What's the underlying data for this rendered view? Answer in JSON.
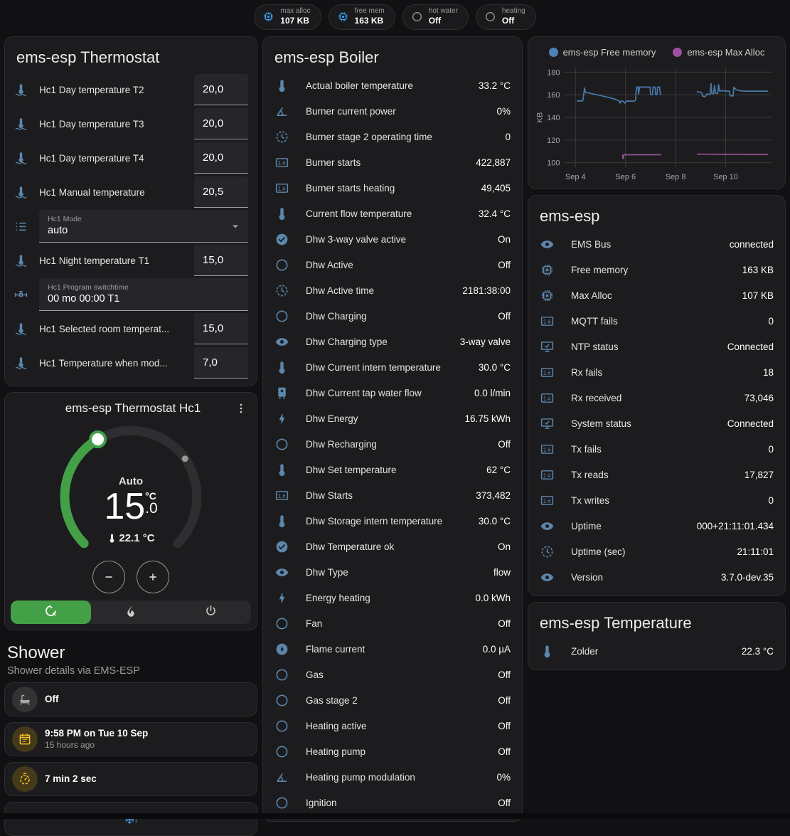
{
  "colors": {
    "accent_green": "#43a047",
    "entity_icon_blue": "#5d86ac",
    "chip_icon_blue": "#38a1ee",
    "tile_amber": "#ffc107",
    "chart_blue": "#4878a8",
    "chart_purple": "#96519a"
  },
  "header": {
    "chips": [
      {
        "icon": "chip",
        "icon_color": "blue",
        "label": "max alloc",
        "value": "107 KB"
      },
      {
        "icon": "chip",
        "icon_color": "blue",
        "label": "free mem",
        "value": "163 KB"
      },
      {
        "icon": "circle-outline",
        "icon_color": "grey",
        "label": "hot water",
        "value": "Off"
      },
      {
        "icon": "circle-outline",
        "icon_color": "grey",
        "label": "heating",
        "value": "Off"
      }
    ]
  },
  "thermostat_card": {
    "title": "ems-esp Thermostat",
    "rows": [
      {
        "icon": "thermometer-water",
        "label": "Hc1 Day temperature T2",
        "input": "20,0"
      },
      {
        "icon": "thermometer-water",
        "label": "Hc1 Day temperature T3",
        "input": "20,0"
      },
      {
        "icon": "thermometer-water",
        "label": "Hc1 Day temperature T4",
        "input": "20,0"
      },
      {
        "icon": "thermometer-water",
        "label": "Hc1 Manual temperature",
        "input": "20,5"
      },
      {
        "icon": "format-list",
        "label": "Hc1 Mode",
        "select": "auto"
      },
      {
        "icon": "thermometer-water",
        "label": "Hc1 Night temperature T1",
        "input": "15,0"
      },
      {
        "icon": "pipe-valve",
        "label": "Hc1 Program switchtime",
        "text": "00 mo 00:00 T1"
      },
      {
        "icon": "thermometer-water",
        "label": "Hc1 Selected room temperat...",
        "input": "15,0"
      },
      {
        "icon": "thermometer-water",
        "label": "Hc1 Temperature when mod...",
        "input": "7,0"
      }
    ]
  },
  "dial_card": {
    "title": "ems-esp Thermostat Hc1",
    "mode_label": "Auto",
    "target_temp": "15",
    "target_fraction": ".0",
    "unit": "°C",
    "current_temp": "22.1 °C",
    "modes": [
      {
        "icon": "thermostat-auto",
        "state": "active"
      },
      {
        "icon": "fire",
        "state": ""
      },
      {
        "icon": "power",
        "state": ""
      }
    ]
  },
  "shower": {
    "title": "Shower",
    "subtitle": "Shower details via EMS-ESP",
    "tiles": [
      {
        "icon": "bathtub",
        "icon_color": "grey",
        "primary": "Off"
      },
      {
        "icon": "calendar-clock",
        "icon_color": "amber",
        "primary": "9:58 PM on Tue 10 Sep",
        "secondary": "15 hours ago"
      },
      {
        "icon": "timer",
        "icon_color": "amber",
        "primary": "7 min 2 sec"
      },
      {
        "icon": "snowflake-alert",
        "icon_color": "blue",
        "variant": "centered"
      }
    ]
  },
  "boiler_card": {
    "title": "ems-esp Boiler",
    "rows": [
      {
        "icon": "thermometer",
        "label": "Actual boiler temperature",
        "value": "33.2 °C"
      },
      {
        "icon": "angle-acute",
        "label": "Burner current power",
        "value": "0%"
      },
      {
        "icon": "clock-outline",
        "label": "Burner stage 2 operating time",
        "value": "0"
      },
      {
        "icon": "counter",
        "label": "Burner starts",
        "value": "422,887"
      },
      {
        "icon": "counter",
        "label": "Burner starts heating",
        "value": "49,405"
      },
      {
        "icon": "thermometer",
        "label": "Current flow temperature",
        "value": "32.4 °C"
      },
      {
        "icon": "check-circle",
        "label": "Dhw 3-way valve active",
        "value": "On"
      },
      {
        "icon": "circle-outline",
        "label": "Dhw Active",
        "value": "Off"
      },
      {
        "icon": "clock-outline",
        "label": "Dhw Active time",
        "value": "2181:38:00"
      },
      {
        "icon": "circle-outline",
        "label": "Dhw Charging",
        "value": "Off"
      },
      {
        "icon": "eye",
        "label": "Dhw Charging type",
        "value": "3-way valve"
      },
      {
        "icon": "thermometer",
        "label": "Dhw Current intern temperature",
        "value": "30.0 °C"
      },
      {
        "icon": "water-boiler",
        "label": "Dhw Current tap water flow",
        "value": "0.0 l/min"
      },
      {
        "icon": "lightning-bolt",
        "label": "Dhw Energy",
        "value": "16.75 kWh"
      },
      {
        "icon": "circle-outline",
        "label": "Dhw Recharging",
        "value": "Off"
      },
      {
        "icon": "thermometer",
        "label": "Dhw Set temperature",
        "value": "62 °C"
      },
      {
        "icon": "counter",
        "label": "Dhw Starts",
        "value": "373,482"
      },
      {
        "icon": "thermometer",
        "label": "Dhw Storage intern temperature",
        "value": "30.0 °C"
      },
      {
        "icon": "check-circle",
        "label": "Dhw Temperature ok",
        "value": "On"
      },
      {
        "icon": "eye",
        "label": "Dhw Type",
        "value": "flow"
      },
      {
        "icon": "lightning-bolt",
        "label": "Energy heating",
        "value": "0.0 kWh"
      },
      {
        "icon": "circle-outline",
        "label": "Fan",
        "value": "Off"
      },
      {
        "icon": "flash-circle",
        "label": "Flame current",
        "value": "0.0 µA"
      },
      {
        "icon": "circle-outline",
        "label": "Gas",
        "value": "Off"
      },
      {
        "icon": "circle-outline",
        "label": "Gas stage 2",
        "value": "Off"
      },
      {
        "icon": "circle-outline",
        "label": "Heating active",
        "value": "Off"
      },
      {
        "icon": "circle-outline",
        "label": "Heating pump",
        "value": "Off"
      },
      {
        "icon": "angle-acute",
        "label": "Heating pump modulation",
        "value": "0%"
      },
      {
        "icon": "circle-outline",
        "label": "Ignition",
        "value": "Off"
      }
    ]
  },
  "system_card": {
    "title": "ems-esp",
    "rows": [
      {
        "icon": "eye",
        "label": "EMS Bus",
        "value": "connected"
      },
      {
        "icon": "chip",
        "label": "Free memory",
        "value": "163 KB"
      },
      {
        "icon": "chip",
        "label": "Max Alloc",
        "value": "107 KB"
      },
      {
        "icon": "counter",
        "label": "MQTT fails",
        "value": "0"
      },
      {
        "icon": "monitor-check",
        "label": "NTP status",
        "value": "Connected"
      },
      {
        "icon": "counter",
        "label": "Rx fails",
        "value": "18"
      },
      {
        "icon": "counter",
        "label": "Rx received",
        "value": "73,046"
      },
      {
        "icon": "monitor-check",
        "label": "System status",
        "value": "Connected"
      },
      {
        "icon": "counter",
        "label": "Tx fails",
        "value": "0"
      },
      {
        "icon": "counter",
        "label": "Tx reads",
        "value": "17,827"
      },
      {
        "icon": "counter",
        "label": "Tx writes",
        "value": "0"
      },
      {
        "icon": "eye",
        "label": "Uptime",
        "value": "000+21:11:01.434"
      },
      {
        "icon": "clock-outline",
        "label": "Uptime (sec)",
        "value": "21:11:01"
      },
      {
        "icon": "eye",
        "label": "Version",
        "value": "3.7.0-dev.35"
      }
    ]
  },
  "temperature_card": {
    "title": "ems-esp Temperature",
    "rows": [
      {
        "icon": "thermometer",
        "label": "Zolder",
        "value": "22.3 °C"
      }
    ]
  },
  "chart_data": {
    "type": "line",
    "title": "",
    "xlabel": "",
    "ylabel": "KB",
    "xlim": [
      3.55,
      11.85
    ],
    "ylim": [
      96,
      184
    ],
    "y_ticks": [
      100,
      120,
      140,
      160,
      180
    ],
    "x_ticks": [
      {
        "x": 4,
        "label": "Sep 4"
      },
      {
        "x": 6,
        "label": "Sep 6"
      },
      {
        "x": 8,
        "label": "Sep 8"
      },
      {
        "x": 10,
        "label": "Sep 10"
      }
    ],
    "grid": true,
    "legend_position": "top",
    "legend": [
      {
        "label": "ems-esp Free memory",
        "color": "#4e81b5"
      },
      {
        "label": "ems-esp Max Alloc",
        "color": "#9b51a0"
      }
    ],
    "series": [
      {
        "name": "ems-esp Free memory",
        "color": "#4878a8",
        "unit": "KB",
        "segments": [
          [
            [
              4.05,
              154.5
            ],
            [
              4.28,
              154.5
            ],
            [
              4.3,
              155.5
            ],
            [
              4.36,
              166
            ],
            [
              4.4,
              162
            ],
            [
              4.55,
              161.5
            ],
            [
              4.8,
              160.3
            ],
            [
              5.1,
              158.8
            ],
            [
              5.4,
              157.2
            ],
            [
              5.65,
              155.5
            ],
            [
              5.75,
              154.2
            ],
            [
              5.78,
              152.6
            ],
            [
              5.82,
              154.6
            ],
            [
              5.9,
              154.2
            ],
            [
              5.98,
              152.6
            ],
            [
              6.03,
              154.4
            ],
            [
              6.35,
              154.4
            ],
            [
              6.4,
              155.2
            ],
            [
              6.44,
              166.8
            ],
            [
              6.5,
              166.8
            ],
            [
              6.52,
              160.6
            ],
            [
              6.56,
              166.8
            ],
            [
              6.98,
              166.8
            ],
            [
              7.0,
              160.2
            ],
            [
              7.08,
              160.2
            ],
            [
              7.1,
              166.8
            ],
            [
              7.18,
              166.8
            ],
            [
              7.2,
              160.2
            ],
            [
              7.26,
              160.2
            ],
            [
              7.28,
              166.8
            ],
            [
              7.36,
              166.8
            ],
            [
              7.4,
              159.6
            ]
          ],
          [
            [
              8.85,
              162.6
            ],
            [
              9.0,
              162.2
            ],
            [
              9.05,
              161.6
            ],
            [
              9.08,
              158.8
            ],
            [
              9.18,
              158.2
            ],
            [
              9.25,
              160.8
            ],
            [
              9.32,
              160.4
            ],
            [
              9.38,
              160.2
            ],
            [
              9.42,
              170
            ],
            [
              9.45,
              161
            ],
            [
              9.52,
              161
            ],
            [
              9.56,
              168.2
            ],
            [
              9.6,
              161.4
            ],
            [
              9.68,
              161.2
            ],
            [
              9.72,
              169
            ],
            [
              9.76,
              163.2
            ],
            [
              9.88,
              163.6
            ],
            [
              10.05,
              163.2
            ],
            [
              10.15,
              163.2
            ],
            [
              10.18,
              159
            ],
            [
              10.3,
              159
            ],
            [
              10.33,
              166.8
            ],
            [
              10.42,
              164.6
            ],
            [
              10.55,
              163.6
            ],
            [
              10.8,
              163.2
            ],
            [
              11.7,
              163.2
            ]
          ]
        ]
      },
      {
        "name": "ems-esp Max Alloc",
        "color": "#96519a",
        "unit": "KB",
        "segments": [
          [
            [
              5.88,
              107
            ],
            [
              5.9,
              103.5
            ],
            [
              5.94,
              107
            ],
            [
              7.42,
              107
            ]
          ],
          [
            [
              8.85,
              107.5
            ],
            [
              11.7,
              107.2
            ]
          ]
        ]
      }
    ]
  }
}
